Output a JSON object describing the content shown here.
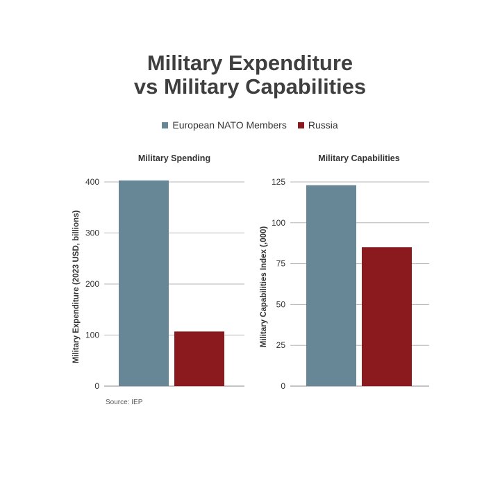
{
  "title_line1": "Military Expenditure",
  "title_line2": "vs Military Capabilities",
  "legend": [
    {
      "label": "European NATO Members",
      "color": "#678797"
    },
    {
      "label": "Russia",
      "color": "#8b1a1e"
    }
  ],
  "source": "Source: IEP",
  "chart_data": [
    {
      "type": "bar",
      "title": "Military Spending",
      "ylabel": "Military Expenditure (2023 USD, billions)",
      "ylim": [
        0,
        400
      ],
      "yticks": [
        0,
        100,
        200,
        300,
        400
      ],
      "grid": true,
      "series": [
        {
          "name": "European NATO Members",
          "values": [
            403
          ],
          "color": "#678797"
        },
        {
          "name": "Russia",
          "values": [
            107
          ],
          "color": "#8b1a1e"
        }
      ]
    },
    {
      "type": "bar",
      "title": "Military Capabilities",
      "ylabel": "Military Capabilities Index (,000)",
      "ylim": [
        0,
        125
      ],
      "yticks": [
        0,
        25,
        50,
        75,
        100,
        125
      ],
      "grid": true,
      "series": [
        {
          "name": "European NATO Members",
          "values": [
            123
          ],
          "color": "#678797"
        },
        {
          "name": "Russia",
          "values": [
            85
          ],
          "color": "#8b1a1e"
        }
      ]
    }
  ]
}
